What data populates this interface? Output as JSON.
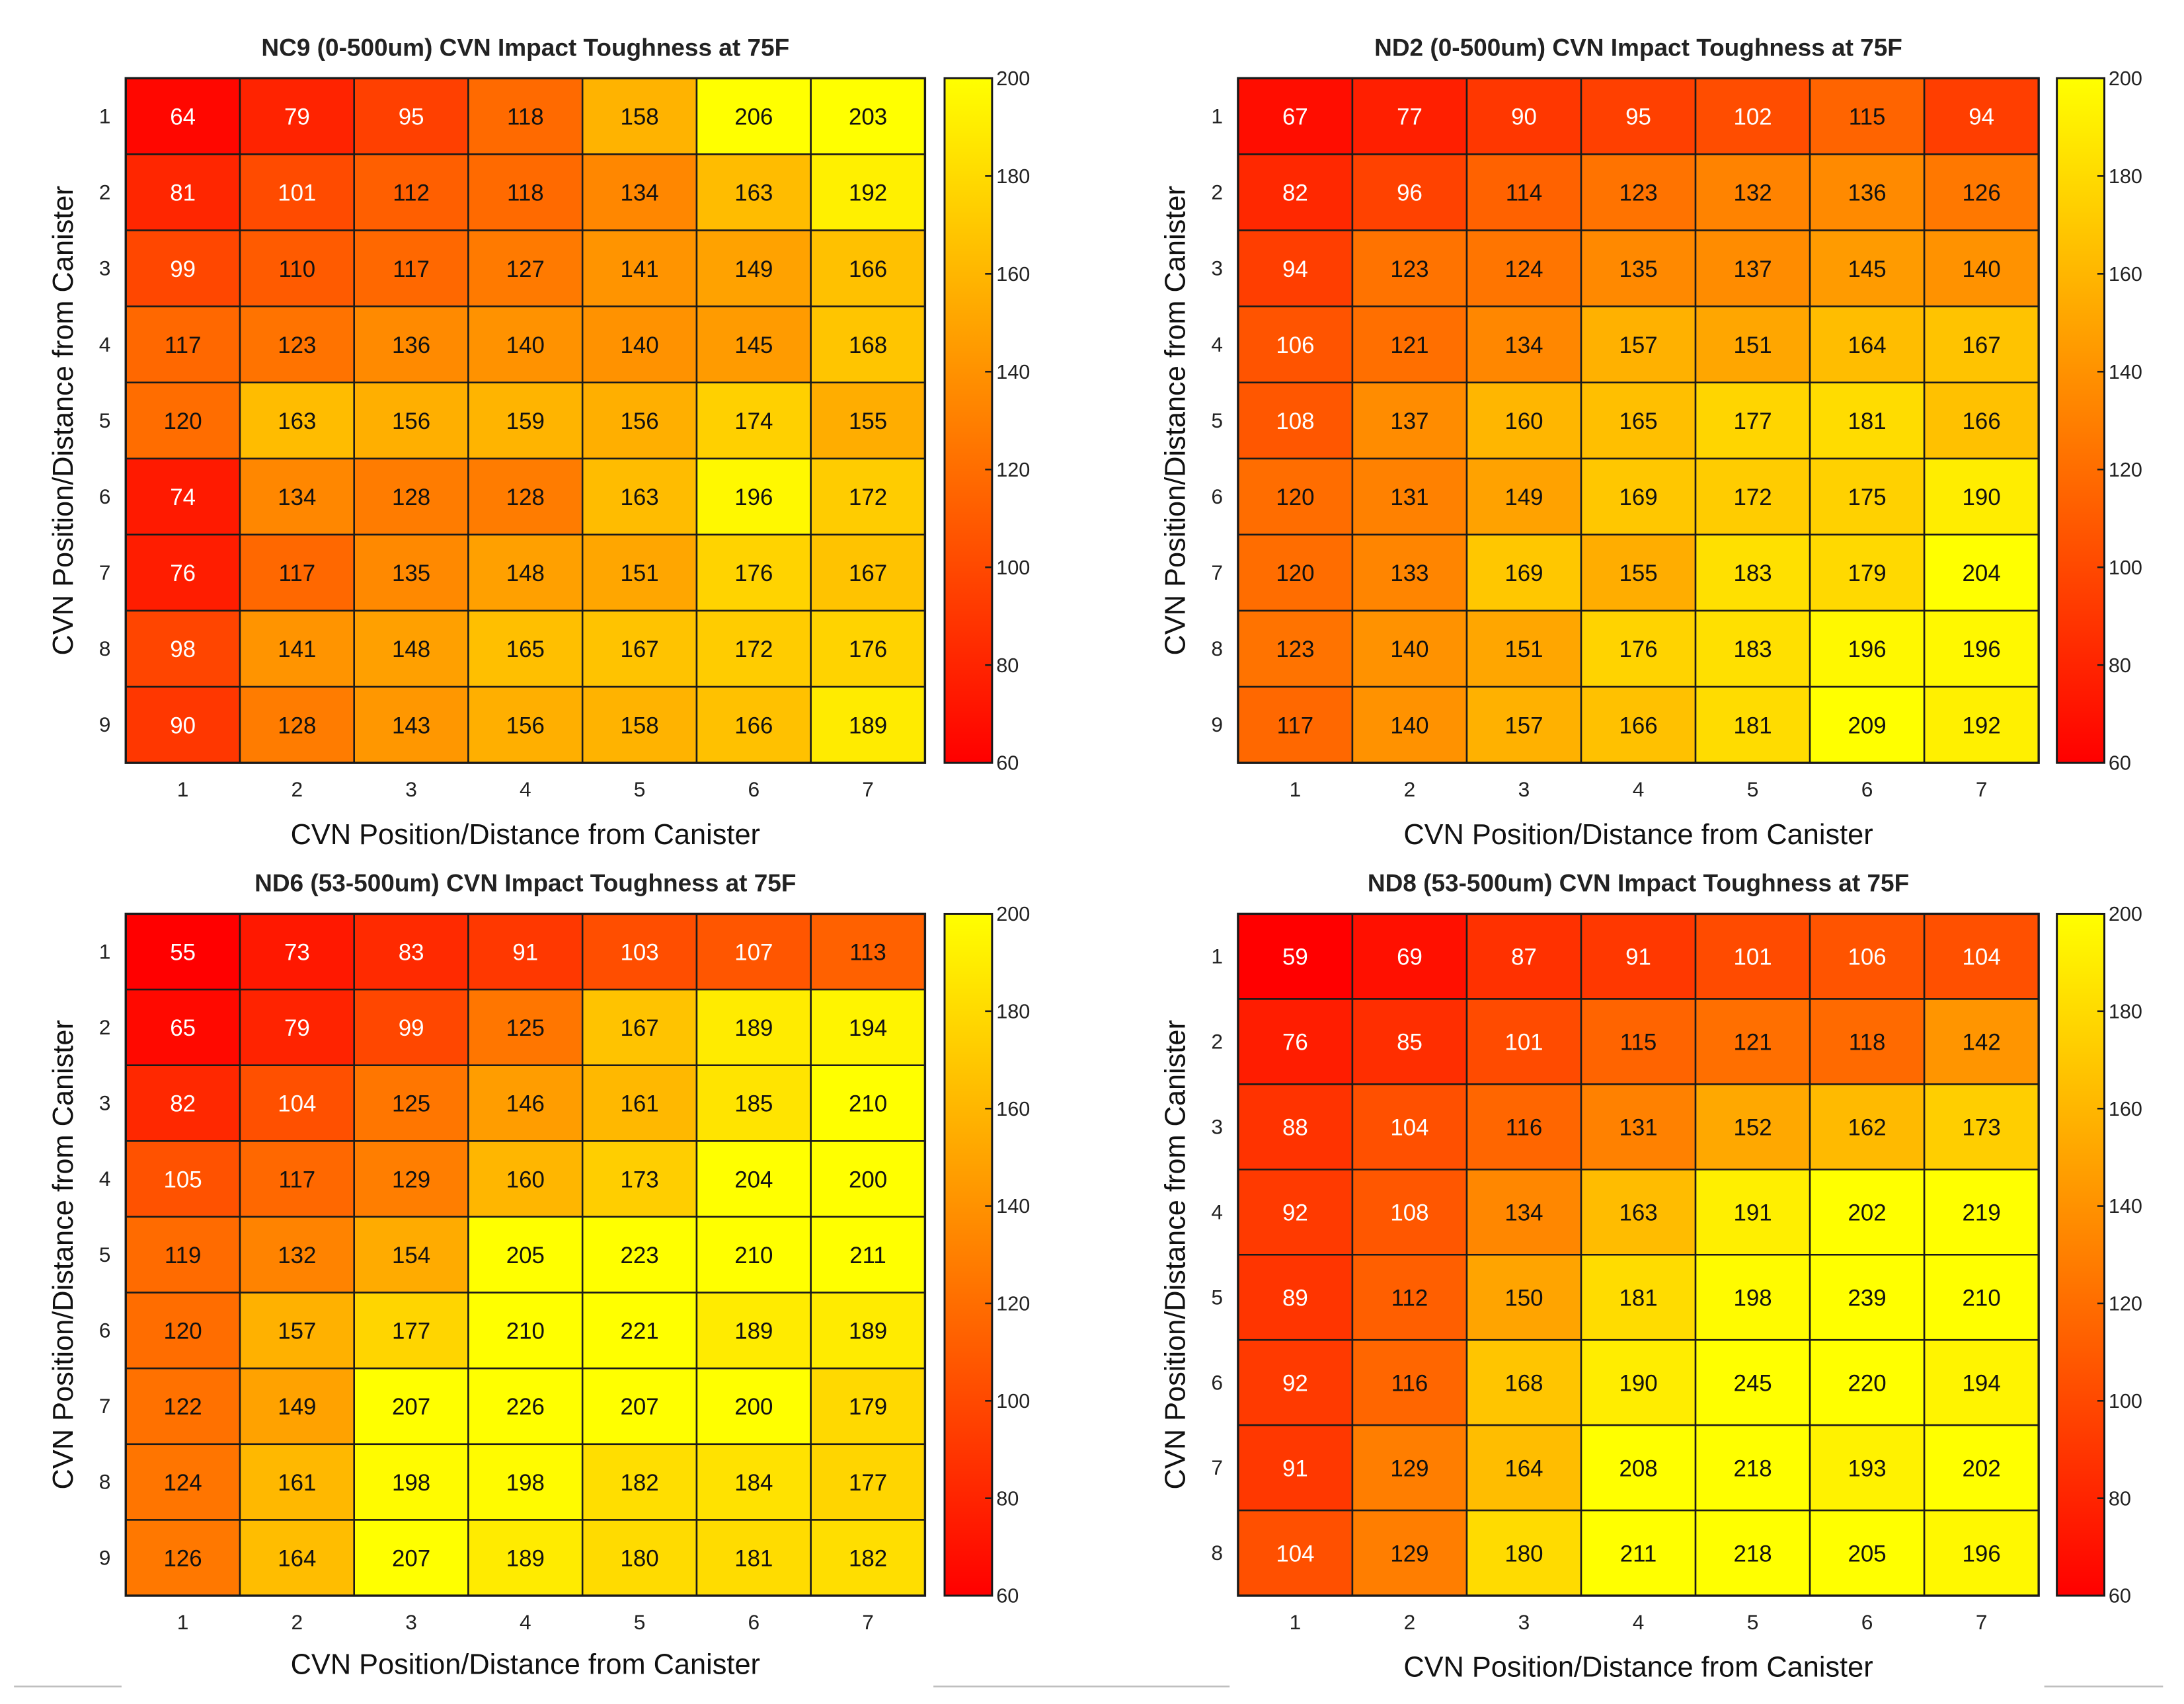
{
  "chart_data": [
    {
      "type": "heatmap",
      "title": "NC9 (0-500um) CVN Impact Toughness at 75F",
      "xlabel": "CVN Position/Distance from Canister",
      "ylabel": "CVN Position/Distance from Canister",
      "x": [
        "1",
        "2",
        "3",
        "4",
        "5",
        "6",
        "7"
      ],
      "y": [
        "1",
        "2",
        "3",
        "4",
        "5",
        "6",
        "7",
        "8",
        "9"
      ],
      "values": [
        [
          64,
          79,
          95,
          118,
          158,
          206,
          203
        ],
        [
          81,
          101,
          112,
          118,
          134,
          163,
          192
        ],
        [
          99,
          110,
          117,
          127,
          141,
          149,
          166
        ],
        [
          117,
          123,
          136,
          140,
          140,
          145,
          168
        ],
        [
          120,
          163,
          156,
          159,
          156,
          174,
          155
        ],
        [
          74,
          134,
          128,
          128,
          163,
          196,
          172
        ],
        [
          76,
          117,
          135,
          148,
          151,
          176,
          167
        ],
        [
          98,
          141,
          148,
          165,
          167,
          172,
          176
        ],
        [
          90,
          128,
          143,
          156,
          158,
          166,
          189
        ]
      ],
      "colorbar": {
        "min": 60,
        "max": 200,
        "ticks": [
          "200",
          "180",
          "160",
          "140",
          "120",
          "100",
          "80",
          "60"
        ]
      },
      "colormap": {
        "low": "#ff0000",
        "high": "#ffff00"
      }
    },
    {
      "type": "heatmap",
      "title": "ND2 (0-500um) CVN Impact Toughness at 75F",
      "xlabel": "CVN Position/Distance from Canister",
      "ylabel": "CVN Position/Distance from Canister",
      "x": [
        "1",
        "2",
        "3",
        "4",
        "5",
        "6",
        "7"
      ],
      "y": [
        "1",
        "2",
        "3",
        "4",
        "5",
        "6",
        "7",
        "8",
        "9"
      ],
      "values": [
        [
          67,
          77,
          90,
          95,
          102,
          115,
          94
        ],
        [
          82,
          96,
          114,
          123,
          132,
          136,
          126
        ],
        [
          94,
          123,
          124,
          135,
          137,
          145,
          140
        ],
        [
          106,
          121,
          134,
          157,
          151,
          164,
          167
        ],
        [
          108,
          137,
          160,
          165,
          177,
          181,
          166
        ],
        [
          120,
          131,
          149,
          169,
          172,
          175,
          190
        ],
        [
          120,
          133,
          169,
          155,
          183,
          179,
          204
        ],
        [
          123,
          140,
          151,
          176,
          183,
          196,
          196
        ],
        [
          117,
          140,
          157,
          166,
          181,
          209,
          192
        ]
      ],
      "colorbar": {
        "min": 60,
        "max": 200,
        "ticks": [
          "200",
          "180",
          "160",
          "140",
          "120",
          "100",
          "80",
          "60"
        ]
      },
      "colormap": {
        "low": "#ff0000",
        "high": "#ffff00"
      }
    },
    {
      "type": "heatmap",
      "title": "ND6 (53-500um) CVN Impact Toughness at 75F",
      "xlabel": "CVN Position/Distance from Canister",
      "ylabel": "CVN Position/Distance from Canister",
      "x": [
        "1",
        "2",
        "3",
        "4",
        "5",
        "6",
        "7"
      ],
      "y": [
        "1",
        "2",
        "3",
        "4",
        "5",
        "6",
        "7",
        "8",
        "9"
      ],
      "values": [
        [
          55,
          73,
          83,
          91,
          103,
          107,
          113
        ],
        [
          65,
          79,
          99,
          125,
          167,
          189,
          194
        ],
        [
          82,
          104,
          125,
          146,
          161,
          185,
          210
        ],
        [
          105,
          117,
          129,
          160,
          173,
          204,
          200
        ],
        [
          119,
          132,
          154,
          205,
          223,
          210,
          211
        ],
        [
          120,
          157,
          177,
          210,
          221,
          189,
          189
        ],
        [
          122,
          149,
          207,
          226,
          207,
          200,
          179
        ],
        [
          124,
          161,
          198,
          198,
          182,
          184,
          177
        ],
        [
          126,
          164,
          207,
          189,
          180,
          181,
          182
        ]
      ],
      "colorbar": {
        "min": 60,
        "max": 200,
        "ticks": [
          "200",
          "180",
          "160",
          "140",
          "120",
          "100",
          "80",
          "60"
        ]
      },
      "colormap": {
        "low": "#ff0000",
        "high": "#ffff00"
      }
    },
    {
      "type": "heatmap",
      "title": "ND8 (53-500um) CVN Impact Toughness at 75F",
      "xlabel": "CVN Position/Distance from Canister",
      "ylabel": "CVN Position/Distance from Canister",
      "x": [
        "1",
        "2",
        "3",
        "4",
        "5",
        "6",
        "7"
      ],
      "y": [
        "1",
        "2",
        "3",
        "4",
        "5",
        "6",
        "7",
        "8"
      ],
      "values": [
        [
          59,
          69,
          87,
          91,
          101,
          106,
          104
        ],
        [
          76,
          85,
          101,
          115,
          121,
          118,
          142
        ],
        [
          88,
          104,
          116,
          131,
          152,
          162,
          173
        ],
        [
          92,
          108,
          134,
          163,
          191,
          202,
          219
        ],
        [
          89,
          112,
          150,
          181,
          198,
          239,
          210
        ],
        [
          92,
          116,
          168,
          190,
          245,
          220,
          194
        ],
        [
          91,
          129,
          164,
          208,
          218,
          193,
          202
        ],
        [
          104,
          129,
          180,
          211,
          218,
          205,
          196
        ]
      ],
      "colorbar": {
        "min": 60,
        "max": 200,
        "ticks": [
          "200",
          "180",
          "160",
          "140",
          "120",
          "100",
          "80",
          "60"
        ]
      },
      "colormap": {
        "low": "#ff0000",
        "high": "#ffff00"
      }
    }
  ]
}
